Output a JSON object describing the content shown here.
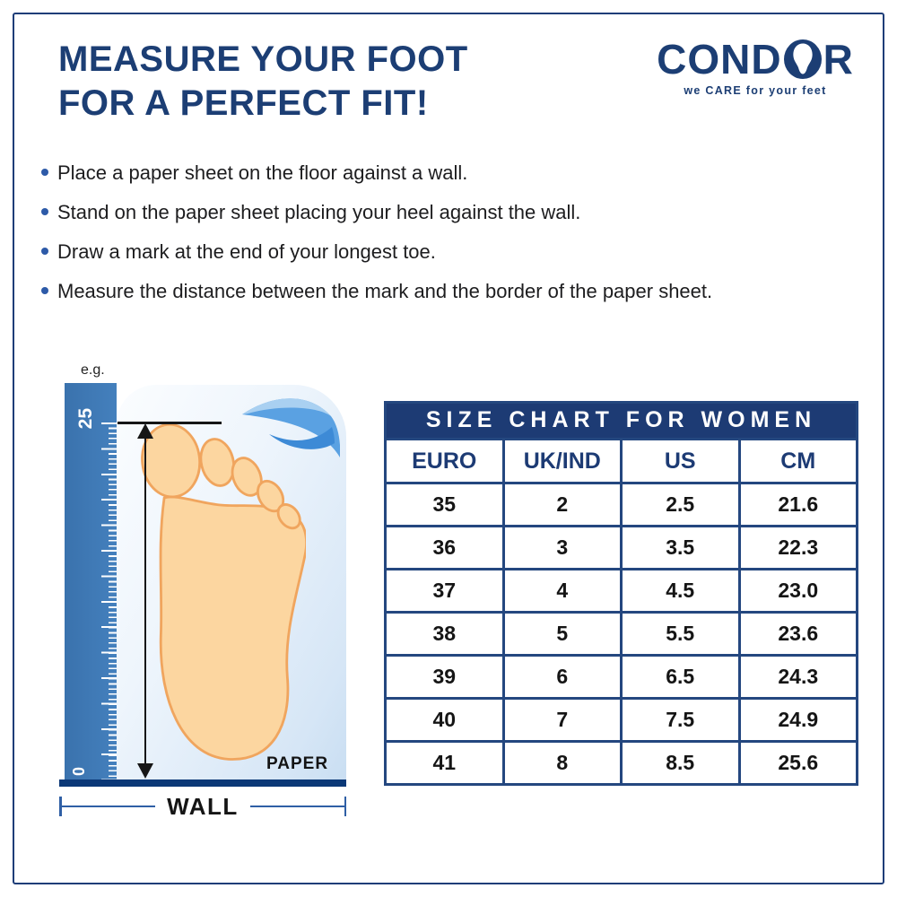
{
  "header": {
    "title_line1": "MEASURE YOUR FOOT",
    "title_line2": "FOR A PERFECT FIT!"
  },
  "logo": {
    "brand_prefix": "COND",
    "brand_suffix": "R",
    "tagline": "we CARE for your feet"
  },
  "instructions": {
    "items": [
      "Place a paper sheet on the floor against a wall.",
      "Stand on the paper sheet placing your heel against the wall.",
      "Draw a mark at the end of your longest toe.",
      "Measure the distance between the mark and the border of the paper sheet."
    ]
  },
  "diagram": {
    "example_label": "e.g.",
    "ruler_top_value": "25",
    "ruler_bottom_value": "0",
    "paper_label": "PAPER",
    "wall_label": "WALL"
  },
  "size_chart": {
    "title": "SIZE CHART FOR WOMEN",
    "columns": [
      "EURO",
      "UK/IND",
      "US",
      "CM"
    ],
    "rows": [
      [
        "35",
        "2",
        "2.5",
        "21.6"
      ],
      [
        "36",
        "3",
        "3.5",
        "22.3"
      ],
      [
        "37",
        "4",
        "4.5",
        "23.0"
      ],
      [
        "38",
        "5",
        "5.5",
        "23.6"
      ],
      [
        "39",
        "6",
        "6.5",
        "24.3"
      ],
      [
        "40",
        "7",
        "7.5",
        "24.9"
      ],
      [
        "41",
        "8",
        "8.5",
        "25.6"
      ]
    ]
  },
  "colors": {
    "brand_navy": "#1c3e74",
    "table_border": "#24477f",
    "ruler_blue": "#3e7ab8",
    "wall_bar": "#0b3877",
    "foot_fill": "#fcd6a0",
    "foot_outline": "#f0a55e",
    "bullet_dot": "#2d5aa8"
  }
}
